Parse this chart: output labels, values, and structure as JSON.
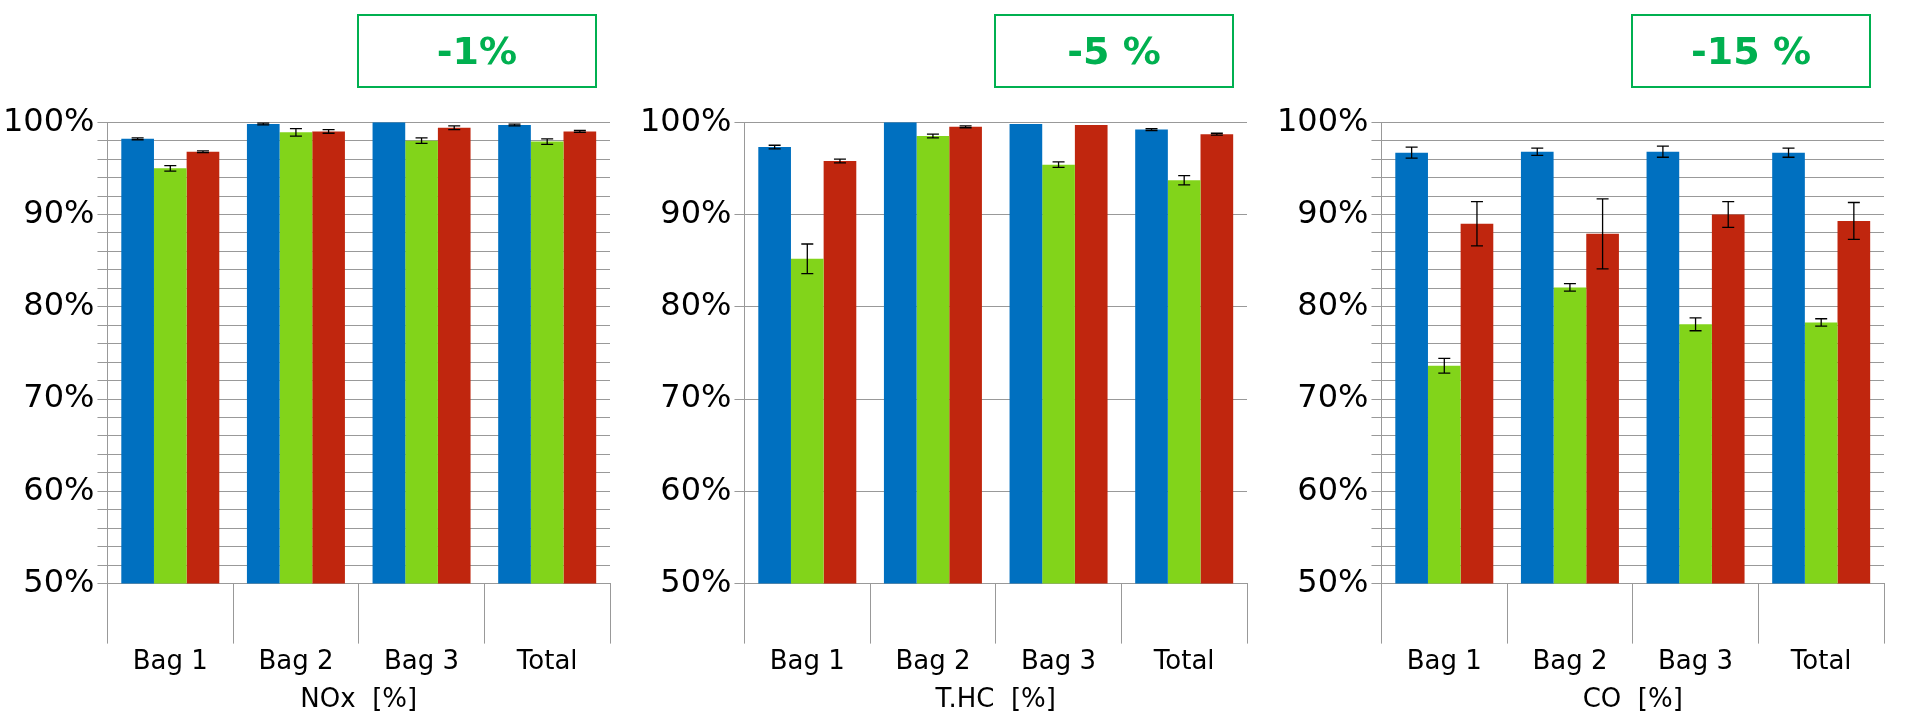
{
  "chart_data": [
    {
      "type": "bar",
      "xlabel": "NOx  [%]",
      "annotations": [
        "-1%"
      ],
      "categories": [
        "Bag 1",
        "Bag 2",
        "Bag 3",
        "Total"
      ],
      "series": [
        {
          "color": "#0070c0",
          "values": [
            98.2,
            99.8,
            100,
            99.7
          ],
          "errors": [
            0.1,
            0.1,
            null,
            0.1
          ]
        },
        {
          "color": "#82d41a",
          "values": [
            95.0,
            98.9,
            98.0,
            97.9
          ],
          "errors": [
            0.3,
            0.4,
            0.3,
            0.3
          ]
        },
        {
          "color": "#c0260e",
          "values": [
            96.8,
            99.0,
            99.4,
            99.0
          ],
          "errors": [
            0.1,
            0.2,
            0.2,
            0.1
          ]
        }
      ],
      "ylim": [
        50,
        100
      ],
      "yticks": [
        {
          "value": 50,
          "label": "50%"
        },
        {
          "value": 52,
          "label": null
        },
        {
          "value": 54,
          "label": null
        },
        {
          "value": 56,
          "label": null
        },
        {
          "value": 58,
          "label": null
        },
        {
          "value": 60,
          "label": "60%"
        },
        {
          "value": 62,
          "label": null
        },
        {
          "value": 64,
          "label": null
        },
        {
          "value": 66,
          "label": null
        },
        {
          "value": 68,
          "label": null
        },
        {
          "value": 70,
          "label": "70%"
        },
        {
          "value": 72,
          "label": null
        },
        {
          "value": 74,
          "label": null
        },
        {
          "value": 76,
          "label": null
        },
        {
          "value": 78,
          "label": null
        },
        {
          "value": 80,
          "label": "80%"
        },
        {
          "value": 82,
          "label": null
        },
        {
          "value": 84,
          "label": null
        },
        {
          "value": 86,
          "label": null
        },
        {
          "value": 88,
          "label": null
        },
        {
          "value": 90,
          "label": "90%"
        },
        {
          "value": 92,
          "label": null
        },
        {
          "value": 94,
          "label": null
        },
        {
          "value": 96,
          "label": null
        },
        {
          "value": 98,
          "label": null
        },
        {
          "value": 100,
          "label": "100%"
        }
      ],
      "grid": "y",
      "legend": false
    },
    {
      "type": "bar",
      "xlabel": "T.HC  [%]",
      "annotations": [
        "-5 %"
      ],
      "categories": [
        "Bag 1",
        "Bag 2",
        "Bag 3",
        "Total"
      ],
      "series": [
        {
          "color": "#0070c0",
          "values": [
            97.3,
            100,
            99.8,
            99.2
          ],
          "errors": [
            0.2,
            null,
            null,
            0.1
          ]
        },
        {
          "color": "#82d41a",
          "values": [
            85.2,
            98.5,
            95.4,
            93.7
          ],
          "errors": [
            1.6,
            0.2,
            0.3,
            0.5
          ]
        },
        {
          "color": "#c0260e",
          "values": [
            95.8,
            99.5,
            99.7,
            98.7
          ],
          "errors": [
            0.2,
            0.1,
            null,
            0.1
          ]
        }
      ],
      "ylim": [
        50,
        100
      ],
      "yticks": [
        {
          "value": 50,
          "label": "50%"
        },
        {
          "value": 60,
          "label": "60%"
        },
        {
          "value": 70,
          "label": "70%"
        },
        {
          "value": 80,
          "label": "80%"
        },
        {
          "value": 90,
          "label": "90%"
        },
        {
          "value": 100,
          "label": "100%"
        }
      ],
      "grid": "y",
      "legend": false
    },
    {
      "type": "bar",
      "xlabel": "CO  [%]",
      "annotations": [
        "-15 %"
      ],
      "categories": [
        "Bag 1",
        "Bag 2",
        "Bag 3",
        "Total"
      ],
      "series": [
        {
          "color": "#0070c0",
          "values": [
            96.7,
            96.8,
            96.8,
            96.7
          ],
          "errors": [
            0.6,
            0.4,
            0.6,
            0.5
          ]
        },
        {
          "color": "#82d41a",
          "values": [
            73.6,
            82.1,
            78.1,
            78.3
          ],
          "errors": [
            0.8,
            0.4,
            0.7,
            0.4
          ]
        },
        {
          "color": "#c0260e",
          "values": [
            89.0,
            87.9,
            90.0,
            89.3
          ],
          "errors": [
            2.4,
            3.8,
            1.4,
            2.0
          ]
        }
      ],
      "ylim": [
        50,
        100
      ],
      "yticks": [
        {
          "value": 50,
          "label": "50%"
        },
        {
          "value": 52,
          "label": null
        },
        {
          "value": 54,
          "label": null
        },
        {
          "value": 56,
          "label": null
        },
        {
          "value": 58,
          "label": null
        },
        {
          "value": 60,
          "label": "60%"
        },
        {
          "value": 62,
          "label": null
        },
        {
          "value": 64,
          "label": null
        },
        {
          "value": 66,
          "label": null
        },
        {
          "value": 68,
          "label": null
        },
        {
          "value": 70,
          "label": "70%"
        },
        {
          "value": 72,
          "label": null
        },
        {
          "value": 74,
          "label": null
        },
        {
          "value": 76,
          "label": null
        },
        {
          "value": 78,
          "label": null
        },
        {
          "value": 80,
          "label": "80%"
        },
        {
          "value": 82,
          "label": null
        },
        {
          "value": 84,
          "label": null
        },
        {
          "value": 86,
          "label": null
        },
        {
          "value": 88,
          "label": null
        },
        {
          "value": 90,
          "label": "90%"
        },
        {
          "value": 92,
          "label": null
        },
        {
          "value": 94,
          "label": null
        },
        {
          "value": 96,
          "label": null
        },
        {
          "value": 98,
          "label": null
        },
        {
          "value": 100,
          "label": "100%"
        }
      ],
      "grid": "y",
      "legend": false
    }
  ]
}
